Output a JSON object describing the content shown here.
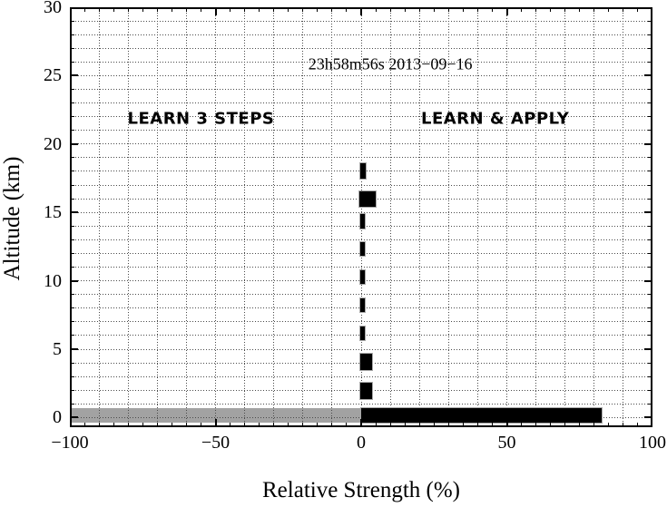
{
  "figure": {
    "background": "#ffffff",
    "frame_color": "#000000",
    "grid_color": "#4a4a4a",
    "bar_color": "#000000",
    "band_color": "#a2a2a2"
  },
  "chart_data": {
    "type": "bar",
    "orientation": "horizontal",
    "title": "23h58m56s 2013−09−16",
    "xlabel": "Relative Strength (%)",
    "ylabel": "Altitude (km)",
    "xlim": [
      -100,
      100
    ],
    "ylim": [
      -0.7,
      30
    ],
    "grid": {
      "style": "dotted",
      "x_step": 10,
      "y_step": 1
    },
    "x_major_ticks": [
      -100,
      -50,
      0,
      50,
      100
    ],
    "x_tick_labels": [
      "−100",
      "−50",
      "0",
      "50",
      "100"
    ],
    "x_minor_step": 5,
    "y_major_ticks": [
      0,
      5,
      10,
      15,
      20,
      25,
      30
    ],
    "y_tick_labels": [
      "0",
      "5",
      "10",
      "15",
      "20",
      "25",
      "30"
    ],
    "y_minor_step": 1,
    "gray_band": {
      "name": "surface-band",
      "alt_from": -0.36,
      "alt_to": 0.7,
      "x_from": -100,
      "x_to": 0,
      "color": "#a2a2a2"
    },
    "bars": [
      {
        "name": "surface-strength-bar",
        "alt_from": -0.36,
        "alt_to": 0.7,
        "x_from": 0,
        "x_to": 82.5
      },
      {
        "name": "altitude-bar-2km",
        "alt_from": 1.36,
        "alt_to": 2.58,
        "x_from": -0.4,
        "x_to": 3.6
      },
      {
        "name": "altitude-bar-4km",
        "alt_from": 3.47,
        "alt_to": 4.68,
        "x_from": -0.4,
        "x_to": 3.6
      },
      {
        "name": "altitude-bar-6km",
        "alt_from": 5.65,
        "alt_to": 6.65,
        "x_from": -0.2,
        "x_to": 1.3
      },
      {
        "name": "altitude-bar-8km",
        "alt_from": 7.7,
        "alt_to": 8.7,
        "x_from": -0.2,
        "x_to": 1.3
      },
      {
        "name": "altitude-bar-10km",
        "alt_from": 9.75,
        "alt_to": 10.75,
        "x_from": -0.2,
        "x_to": 1.3
      },
      {
        "name": "altitude-bar-12km",
        "alt_from": 11.8,
        "alt_to": 12.8,
        "x_from": -0.2,
        "x_to": 1.3
      },
      {
        "name": "altitude-bar-14km",
        "alt_from": 13.85,
        "alt_to": 14.85,
        "x_from": -0.2,
        "x_to": 1.3
      },
      {
        "name": "altitude-bar-16km",
        "alt_from": 15.4,
        "alt_to": 16.55,
        "x_from": -0.5,
        "x_to": 5.1
      },
      {
        "name": "altitude-bar-18km",
        "alt_from": 17.5,
        "alt_to": 18.6,
        "x_from": -0.2,
        "x_to": 1.5
      }
    ],
    "annotations": {
      "timestamp": {
        "text": "23h58m56s 2013−09−16",
        "x": 10,
        "alt": 25.8
      },
      "left_zone": {
        "text": "LEARN 3 STEPS",
        "x": -55,
        "alt": 21.85
      },
      "right_zone": {
        "text": "LEARN & APPLY",
        "x": 46,
        "alt": 21.85
      }
    }
  }
}
